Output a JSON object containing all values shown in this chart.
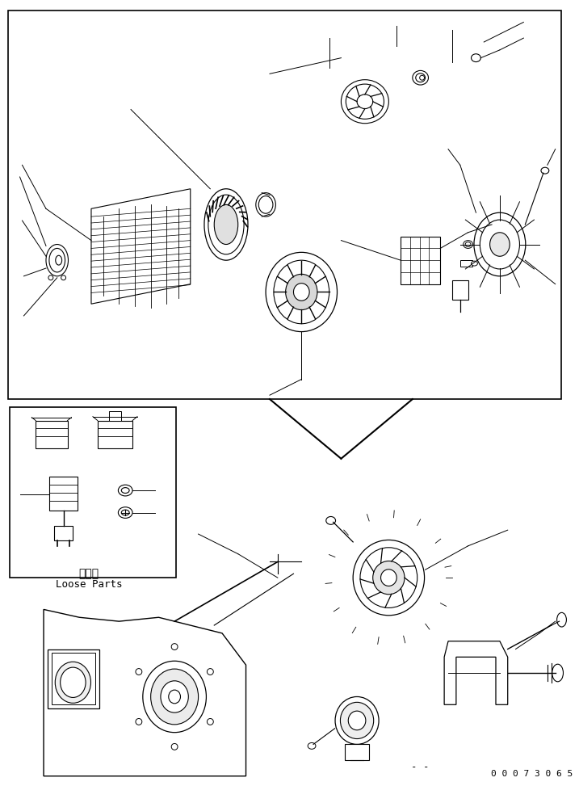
{
  "bg_color": "#ffffff",
  "line_color": "#000000",
  "fig_width": 7.17,
  "fig_height": 9.73,
  "dpi": 100,
  "bottom_code": "0 0 0 7 3 0 6 5",
  "loose_parts_jp": "同個品",
  "loose_parts_en": "Loose Parts",
  "dash_text": "- -"
}
